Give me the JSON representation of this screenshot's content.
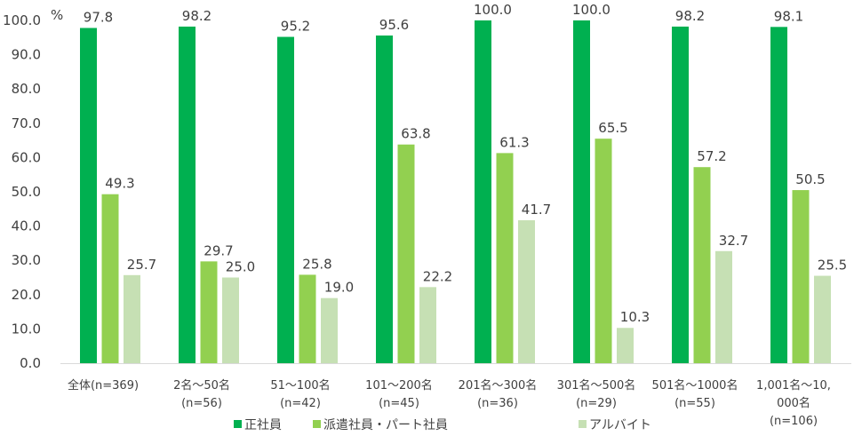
{
  "chart_data": {
    "type": "bar",
    "unit_label": "%",
    "ylim": [
      0,
      100
    ],
    "yticks": [
      "0.0",
      "10.0",
      "20.0",
      "30.0",
      "40.0",
      "50.0",
      "60.0",
      "70.0",
      "80.0",
      "90.0",
      "100.0"
    ],
    "categories": [
      [
        "全体(n=369)"
      ],
      [
        "2名～50名",
        "(n=56)"
      ],
      [
        "51～100名",
        "(n=42)"
      ],
      [
        "101～200名",
        "(n=45)"
      ],
      [
        "201名～300名",
        "(n=36)"
      ],
      [
        "301名～500名",
        "(n=29)"
      ],
      [
        "501名～1000名",
        "(n=55)"
      ],
      [
        "1,001名～10,",
        "000名",
        "(n=106)"
      ]
    ],
    "series": [
      {
        "name": "正社員",
        "color": "#00b050",
        "values": [
          97.8,
          98.2,
          95.2,
          95.6,
          100.0,
          100.0,
          98.2,
          98.1
        ]
      },
      {
        "name": "派遣社員・パート社員",
        "color": "#92d050",
        "values": [
          49.3,
          29.7,
          25.8,
          63.8,
          61.3,
          65.5,
          57.2,
          50.5
        ]
      },
      {
        "name": "アルバイト",
        "color": "#c6e0b4",
        "values": [
          25.7,
          25.0,
          19.0,
          22.2,
          41.7,
          10.3,
          32.7,
          25.5
        ]
      }
    ],
    "legend_position": "bottom",
    "grid": false
  }
}
